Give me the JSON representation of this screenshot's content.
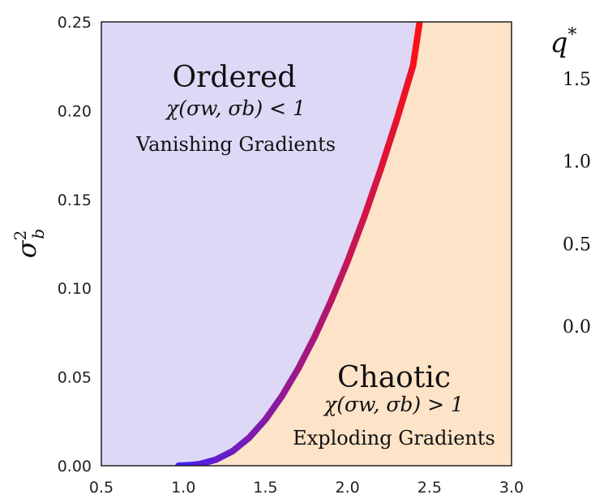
{
  "chart_data": {
    "type": "area",
    "xlim": [
      0.5,
      3.0
    ],
    "ylim": [
      0.0,
      0.25
    ],
    "x_ticks": [
      "0.5",
      "1.0",
      "1.5",
      "2.0",
      "2.5",
      "3.0"
    ],
    "y_ticks": [
      "0.00",
      "0.05",
      "0.10",
      "0.15",
      "0.20",
      "0.25"
    ],
    "ylabel_base": "σ",
    "ylabel_sup": "2",
    "ylabel_sub": "b",
    "grid": false,
    "boundary": {
      "x": [
        0.97,
        1.05,
        1.1,
        1.2,
        1.3,
        1.4,
        1.5,
        1.6,
        1.7,
        1.8,
        1.9,
        2.0,
        2.1,
        2.2,
        2.3,
        2.4,
        2.44
      ],
      "y": [
        0.0,
        0.0004,
        0.0009,
        0.0035,
        0.0082,
        0.0157,
        0.026,
        0.0391,
        0.0547,
        0.0726,
        0.0928,
        0.115,
        0.1396,
        0.1662,
        0.1947,
        0.2254,
        0.25
      ],
      "q_star_range": [
        0.0,
        1.5
      ]
    },
    "regions": [
      {
        "title": "Ordered",
        "condition": "χ(σw, σb) < 1",
        "subtitle": "Vanishing Gradients",
        "color": "#dcd8f6"
      },
      {
        "title": "Chaotic",
        "condition": "χ(σw, σb) > 1",
        "subtitle": "Exploding Gradients",
        "color": "#fde3c8"
      }
    ],
    "colorbar": {
      "title_base": "q",
      "title_sup": "*",
      "ticks": [
        "0.0",
        "0.5",
        "1.0",
        "1.5"
      ],
      "tick_values": [
        0.0,
        0.5,
        1.0,
        1.5
      ],
      "range": [
        0.0,
        1.5
      ],
      "color_low": "#3a20ff",
      "color_high": "#ff1010"
    }
  }
}
